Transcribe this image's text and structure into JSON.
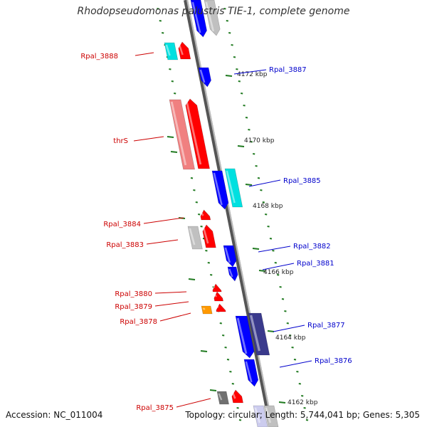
{
  "title": "Rhodopseudomonas palustris TIE-1, complete genome",
  "footer": {
    "accession": "Accession: NC_011004",
    "summary": "Topology: circular; Length: 5,744,041 bp; Genes: 5,305"
  },
  "colors": {
    "forward_red": "#ff0000",
    "forward_pink": "#f08080",
    "reverse_blue": "#0000ff",
    "reverse_darkblue": "#3a3a8c",
    "cyan": "#00e0e0",
    "gray": "#c0c0c0",
    "darkgray": "#707070",
    "orange": "#ff9900",
    "backbone": "#808080",
    "tick_green": "#207a20",
    "label_red": "#cc0000",
    "label_blue": "#0000cc"
  },
  "scale_labels": [
    {
      "text": "4172 kbp"
    },
    {
      "text": "4170 kbp"
    },
    {
      "text": "4168 kbp"
    },
    {
      "text": "4166 kbp"
    },
    {
      "text": "4164 kbp"
    },
    {
      "text": "4162 kbp"
    }
  ],
  "left_labels": [
    {
      "text": "Rpal_3888"
    },
    {
      "text": "thrS"
    },
    {
      "text": "Rpal_3884"
    },
    {
      "text": "Rpal_3883"
    },
    {
      "text": "Rpal_3880"
    },
    {
      "text": "Rpal_3879"
    },
    {
      "text": "Rpal_3878"
    },
    {
      "text": "Rpal_3875"
    }
  ],
  "right_labels": [
    {
      "text": "Rpal_3887"
    },
    {
      "text": "Rpal_3885"
    },
    {
      "text": "Rpal_3882"
    },
    {
      "text": "Rpal_3881"
    },
    {
      "text": "Rpal_3877"
    },
    {
      "text": "Rpal_3876"
    }
  ]
}
